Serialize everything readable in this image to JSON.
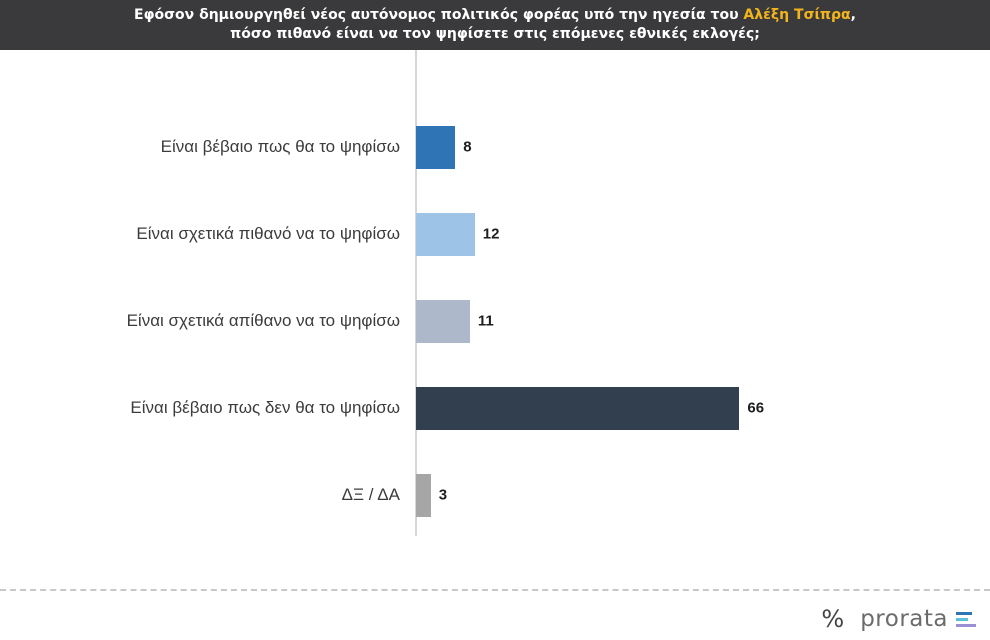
{
  "header": {
    "question_pre": "Εφόσον δημιουργηθεί νέος αυτόνομος πολιτικός φορέας υπό την ηγεσία του ",
    "question_highlight": "Αλέξη Τσίπρα",
    "question_post": ",",
    "question_line2": "πόσο πιθανό είναι να τον ψηφίσετε στις επόμενες εθνικές εκλογές;",
    "highlight_color": "#f2b51c"
  },
  "chart_data": {
    "type": "bar",
    "orientation": "horizontal",
    "categories": [
      "Είναι βέβαιο πως θα το ψηφίσω",
      "Είναι σχετικά πιθανό να το ψηφίσω",
      "Είναι σχετικά απίθανο να το ψηφίσω",
      "Είναι βέβαιο πως δεν θα το ψηφίσω",
      "ΔΞ / ΔΑ"
    ],
    "values": [
      8,
      12,
      11,
      66,
      3
    ],
    "colors": [
      "#2f75b6",
      "#9dc3e6",
      "#adb9ca",
      "#323f4f",
      "#a6a6a6"
    ],
    "xlim": [
      0,
      100
    ],
    "grid": false,
    "legend": "none"
  },
  "footer": {
    "logo_symbol": "%",
    "logo_text": "prorata",
    "logo_bar_colors": [
      "#2f75b6",
      "#5bc0de",
      "#9b8fd6"
    ]
  }
}
